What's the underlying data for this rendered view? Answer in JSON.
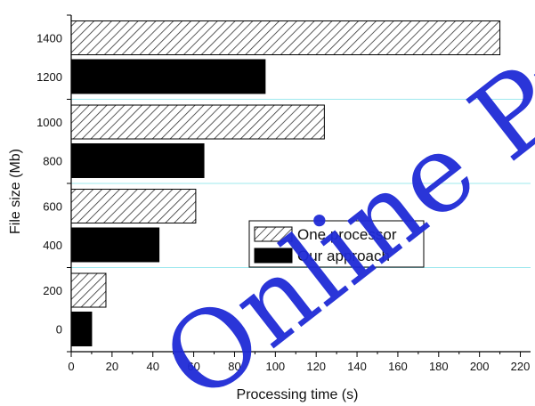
{
  "chart_data": {
    "type": "bar",
    "orientation": "horizontal",
    "title": "",
    "xlabel": "Processing time (s)",
    "ylabel": "File size (Mb)",
    "xlim": [
      0,
      225
    ],
    "x_ticks": [
      0,
      20,
      40,
      60,
      80,
      100,
      120,
      140,
      160,
      180,
      200,
      220
    ],
    "y_ticks": [
      "0",
      "200",
      "400",
      "600",
      "800",
      "1000",
      "1200",
      "1400"
    ],
    "grid": "horizontal",
    "legend_position": "center-right",
    "series": [
      {
        "name": "One processor",
        "pattern": "diagonal-hatch",
        "color": "#ffffff",
        "points": [
          {
            "file_size": 200,
            "time": 17
          },
          {
            "file_size": 600,
            "time": 61
          },
          {
            "file_size": 1000,
            "time": 124
          },
          {
            "file_size": 1400,
            "time": 210
          }
        ]
      },
      {
        "name": "Our approach",
        "pattern": "solid",
        "color": "#000000",
        "points": [
          {
            "file_size": 0,
            "time": 10
          },
          {
            "file_size": 400,
            "time": 43
          },
          {
            "file_size": 800,
            "time": 65
          },
          {
            "file_size": 1200,
            "time": 95
          }
        ]
      }
    ],
    "gridline_color": "#9ee8ee",
    "watermark_text": "Online Pub",
    "watermark_color": "#1f2bd6"
  }
}
